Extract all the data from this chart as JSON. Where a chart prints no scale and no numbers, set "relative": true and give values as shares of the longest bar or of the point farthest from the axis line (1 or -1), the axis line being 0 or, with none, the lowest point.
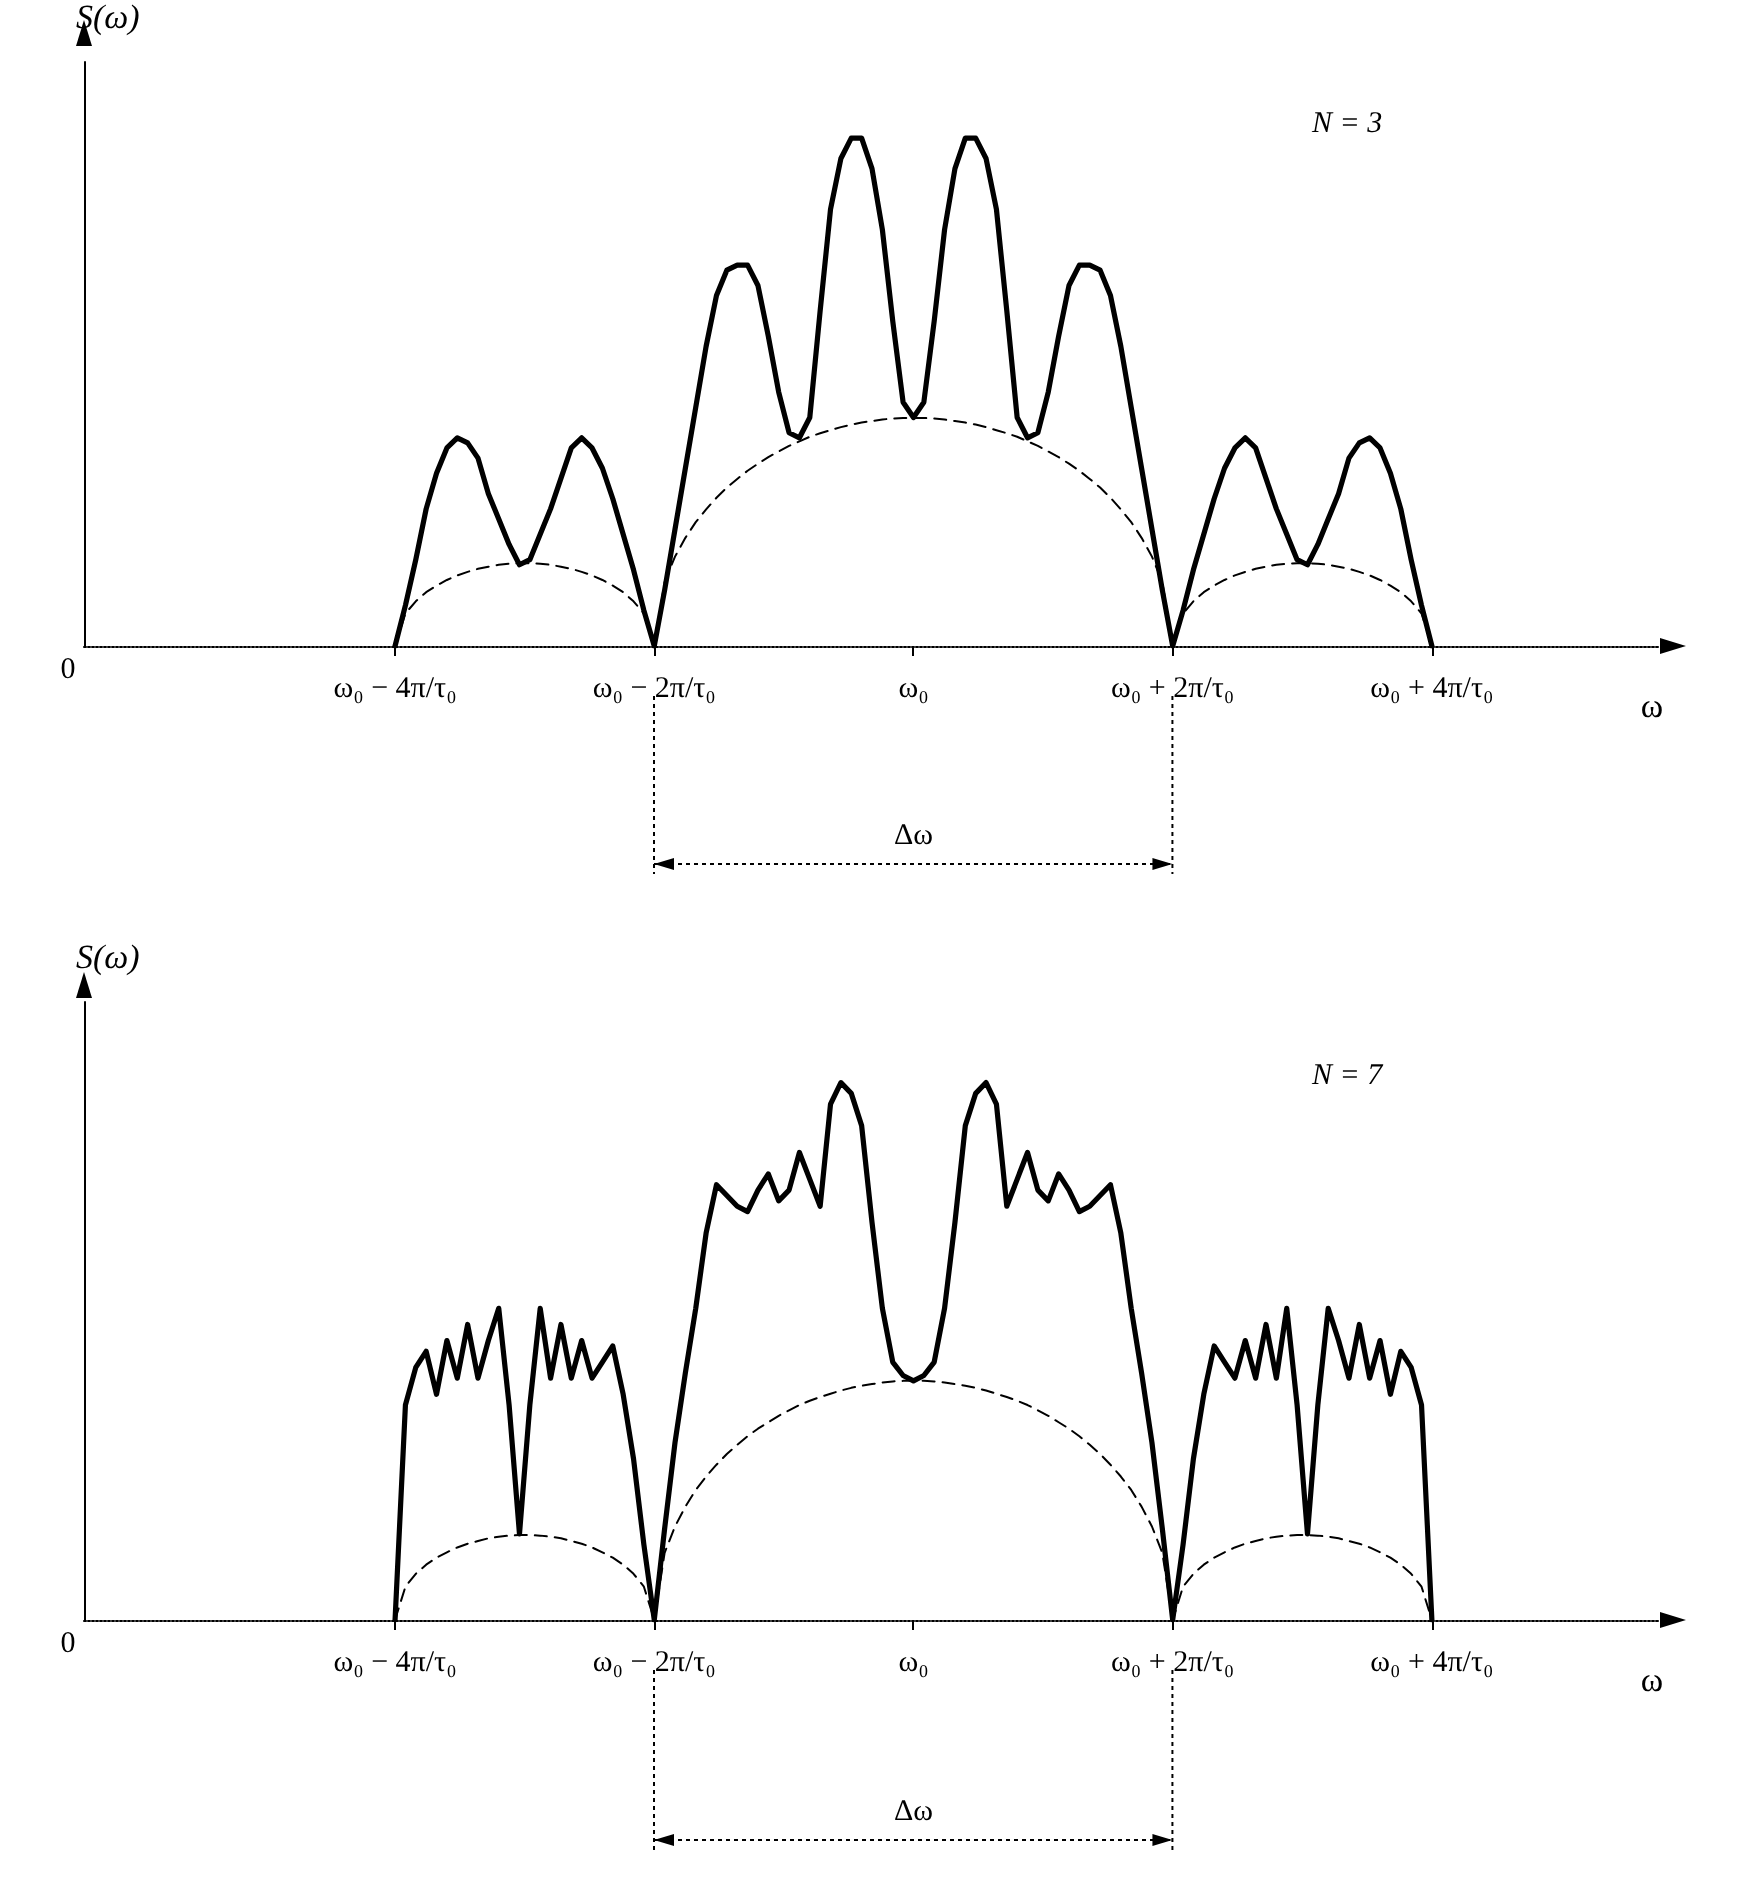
{
  "chart_data": [
    {
      "type": "line",
      "relative": true,
      "ylabel": "S(ω)",
      "xlabel": "ω",
      "grid": false,
      "marker": "none",
      "tick_labels": "x",
      "annotations": [
        "N = 3",
        "0",
        "Δω"
      ],
      "categories": [
        null,
        null,
        null,
        null,
        null,
        null,
        null,
        null,
        null,
        null,
        null,
        null,
        null,
        null,
        null,
        null,
        null,
        null,
        null,
        null,
        null,
        null,
        null,
        null,
        null,
        null,
        null,
        null,
        null,
        null,
        "ω₀ − 4π/τ₀",
        null,
        null,
        null,
        null,
        null,
        null,
        null,
        null,
        null,
        null,
        null,
        null,
        null,
        null,
        null,
        null,
        null,
        null,
        null,
        null,
        null,
        null,
        null,
        null,
        "ω₀ − 2π/τ₀",
        null,
        null,
        null,
        null,
        null,
        null,
        null,
        null,
        null,
        null,
        null,
        null,
        null,
        null,
        null,
        null,
        null,
        null,
        null,
        null,
        null,
        null,
        null,
        null,
        "ω₀",
        null,
        null,
        null,
        null,
        null,
        null,
        null,
        null,
        null,
        null,
        null,
        null,
        null,
        null,
        null,
        null,
        null,
        null,
        null,
        null,
        null,
        null,
        null,
        null,
        "ω₀ + 2π/τ₀",
        null,
        null,
        null,
        null,
        null,
        null,
        null,
        null,
        null,
        null,
        null,
        null,
        null,
        null,
        null,
        null,
        null,
        null,
        null,
        null,
        null,
        null,
        null,
        null,
        "ω₀ + 4π/τ₀",
        null,
        null,
        null,
        null,
        null,
        null,
        null,
        null,
        null,
        null,
        null,
        null,
        null,
        null,
        null,
        null,
        null,
        null,
        null,
        null,
        null,
        null
      ],
      "series": [
        {
          "color": "#000000",
          "line_style": "solid",
          "values": [
            null,
            null,
            null,
            null,
            null,
            null,
            null,
            null,
            null,
            null,
            null,
            null,
            null,
            null,
            null,
            null,
            null,
            null,
            null,
            null,
            null,
            null,
            null,
            null,
            null,
            null,
            null,
            null,
            null,
            null,
            0,
            0.08,
            0.17,
            0.27,
            0.34,
            0.39,
            0.41,
            0.4,
            0.37,
            0.3,
            0.25,
            0.2,
            0.16,
            0.17,
            0.22,
            0.27,
            0.33,
            0.39,
            0.41,
            0.39,
            0.35,
            0.29,
            0.22,
            0.15,
            0.07,
            0,
            0.11,
            0.23,
            0.35,
            0.47,
            0.59,
            0.69,
            0.74,
            0.75,
            0.75,
            0.71,
            0.61,
            0.5,
            0.42,
            0.41,
            0.45,
            0.66,
            0.86,
            0.96,
            1,
            1,
            0.94,
            0.82,
            0.64,
            0.48,
            0.45,
            0.48,
            0.64,
            0.82,
            0.94,
            1,
            1,
            0.96,
            0.86,
            0.66,
            0.45,
            0.41,
            0.42,
            0.5,
            0.61,
            0.71,
            0.75,
            0.75,
            0.74,
            0.69,
            0.59,
            0.47,
            0.35,
            0.23,
            0.11,
            0,
            0.07,
            0.15,
            0.22,
            0.29,
            0.35,
            0.39,
            0.41,
            0.39,
            0.33,
            0.27,
            0.22,
            0.17,
            0.16,
            0.2,
            0.25,
            0.3,
            0.37,
            0.4,
            0.41,
            0.39,
            0.34,
            0.27,
            0.17,
            0.08,
            0,
            null,
            null,
            null,
            null,
            null,
            null,
            null,
            null,
            null,
            null,
            null,
            null,
            null,
            null,
            null,
            null,
            null,
            null,
            null,
            null,
            null,
            null
          ]
        },
        {
          "color": "#000000",
          "line_style": "dashed",
          "values": [
            null,
            null,
            null,
            null,
            null,
            null,
            null,
            null,
            null,
            null,
            null,
            null,
            null,
            null,
            null,
            null,
            null,
            null,
            null,
            null,
            null,
            null,
            null,
            null,
            null,
            null,
            null,
            null,
            null,
            null,
            0,
            0.064,
            0.088,
            0.106,
            0.119,
            0.13,
            0.139,
            0.146,
            0.152,
            0.156,
            0.16,
            0.162,
            0.163,
            0.163,
            0.162,
            0.16,
            0.156,
            0.152,
            0.146,
            0.139,
            0.13,
            0.119,
            0.106,
            0.088,
            0.064,
            0,
            0.126,
            0.176,
            0.213,
            0.244,
            0.269,
            0.292,
            0.312,
            0.329,
            0.345,
            0.359,
            0.372,
            0.383,
            0.394,
            0.403,
            0.412,
            0.419,
            0.425,
            0.431,
            0.436,
            0.44,
            0.443,
            0.446,
            0.448,
            0.449,
            0.449,
            0.449,
            0.448,
            0.446,
            0.443,
            0.44,
            0.436,
            0.431,
            0.425,
            0.419,
            0.412,
            0.403,
            0.394,
            0.383,
            0.372,
            0.359,
            0.345,
            0.329,
            0.312,
            0.292,
            0.269,
            0.244,
            0.213,
            0.176,
            0.126,
            0,
            0.064,
            0.088,
            0.106,
            0.119,
            0.13,
            0.139,
            0.146,
            0.152,
            0.156,
            0.16,
            0.162,
            0.163,
            0.163,
            0.162,
            0.16,
            0.156,
            0.152,
            0.146,
            0.139,
            0.13,
            0.119,
            0.106,
            0.088,
            0.064,
            0,
            null,
            null,
            null,
            null,
            null,
            null,
            null,
            null,
            null,
            null,
            null,
            null,
            null,
            null,
            null,
            null,
            null,
            null,
            null,
            null,
            null,
            null
          ]
        }
      ]
    },
    {
      "type": "line",
      "relative": true,
      "ylabel": "S(ω)",
      "xlabel": "ω",
      "grid": false,
      "marker": "none",
      "tick_labels": "x",
      "annotations": [
        "N = 7",
        "0",
        "Δω"
      ],
      "categories": [
        null,
        null,
        null,
        null,
        null,
        null,
        null,
        null,
        null,
        null,
        null,
        null,
        null,
        null,
        null,
        null,
        null,
        null,
        null,
        null,
        null,
        null,
        null,
        null,
        null,
        null,
        null,
        null,
        null,
        null,
        "ω₀ − 4π/τ₀",
        null,
        null,
        null,
        null,
        null,
        null,
        null,
        null,
        null,
        null,
        null,
        null,
        null,
        null,
        null,
        null,
        null,
        null,
        null,
        null,
        null,
        null,
        null,
        null,
        "ω₀ − 2π/τ₀",
        null,
        null,
        null,
        null,
        null,
        null,
        null,
        null,
        null,
        null,
        null,
        null,
        null,
        null,
        null,
        null,
        null,
        null,
        null,
        null,
        null,
        null,
        null,
        null,
        "ω₀",
        null,
        null,
        null,
        null,
        null,
        null,
        null,
        null,
        null,
        null,
        null,
        null,
        null,
        null,
        null,
        null,
        null,
        null,
        null,
        null,
        null,
        null,
        null,
        null,
        "ω₀ + 2π/τ₀",
        null,
        null,
        null,
        null,
        null,
        null,
        null,
        null,
        null,
        null,
        null,
        null,
        null,
        null,
        null,
        null,
        null,
        null,
        null,
        null,
        null,
        null,
        null,
        null,
        "ω₀ + 4π/τ₀",
        null,
        null,
        null,
        null,
        null,
        null,
        null,
        null,
        null,
        null,
        null,
        null,
        null,
        null,
        null,
        null,
        null,
        null,
        null,
        null,
        null,
        null
      ],
      "series": [
        {
          "color": "#000000",
          "line_style": "solid",
          "values": [
            null,
            null,
            null,
            null,
            null,
            null,
            null,
            null,
            null,
            null,
            null,
            null,
            null,
            null,
            null,
            null,
            null,
            null,
            null,
            null,
            null,
            null,
            null,
            null,
            null,
            null,
            null,
            null,
            null,
            null,
            0,
            0.4,
            0.47,
            0.5,
            0.42,
            0.52,
            0.45,
            0.55,
            0.45,
            0.52,
            0.58,
            0.4,
            0.16,
            0.4,
            0.58,
            0.45,
            0.55,
            0.45,
            0.52,
            0.45,
            0.48,
            0.51,
            0.42,
            0.3,
            0.14,
            0,
            0.17,
            0.33,
            0.46,
            0.58,
            0.72,
            0.81,
            0.79,
            0.77,
            0.76,
            0.8,
            0.83,
            0.78,
            0.8,
            0.87,
            0.82,
            0.77,
            0.96,
            1,
            0.98,
            0.92,
            0.74,
            0.58,
            0.48,
            0.455,
            0.445,
            0.455,
            0.48,
            0.58,
            0.74,
            0.92,
            0.98,
            1,
            0.96,
            0.77,
            0.82,
            0.87,
            0.8,
            0.78,
            0.83,
            0.8,
            0.76,
            0.77,
            0.79,
            0.81,
            0.72,
            0.58,
            0.46,
            0.33,
            0.17,
            0,
            0.14,
            0.3,
            0.42,
            0.51,
            0.48,
            0.45,
            0.52,
            0.45,
            0.55,
            0.45,
            0.58,
            0.4,
            0.16,
            0.4,
            0.58,
            0.52,
            0.45,
            0.55,
            0.45,
            0.52,
            0.42,
            0.5,
            0.47,
            0.4,
            0,
            null,
            null,
            null,
            null,
            null,
            null,
            null,
            null,
            null,
            null,
            null,
            null,
            null,
            null,
            null,
            null,
            null,
            null,
            null,
            null,
            null,
            null
          ]
        },
        {
          "color": "#000000",
          "line_style": "dashed",
          "values": [
            null,
            null,
            null,
            null,
            null,
            null,
            null,
            null,
            null,
            null,
            null,
            null,
            null,
            null,
            null,
            null,
            null,
            null,
            null,
            null,
            null,
            null,
            null,
            null,
            null,
            null,
            null,
            null,
            null,
            null,
            0,
            0.062,
            0.086,
            0.103,
            0.116,
            0.126,
            0.135,
            0.142,
            0.147,
            0.152,
            0.155,
            0.157,
            0.158,
            0.158,
            0.157,
            0.155,
            0.152,
            0.147,
            0.142,
            0.135,
            0.126,
            0.116,
            0.103,
            0.086,
            0.062,
            0,
            0.125,
            0.174,
            0.211,
            0.242,
            0.267,
            0.289,
            0.309,
            0.326,
            0.342,
            0.356,
            0.368,
            0.38,
            0.39,
            0.4,
            0.408,
            0.415,
            0.421,
            0.427,
            0.432,
            0.436,
            0.439,
            0.442,
            0.444,
            0.445,
            0.445,
            0.445,
            0.444,
            0.442,
            0.439,
            0.436,
            0.432,
            0.427,
            0.421,
            0.415,
            0.408,
            0.4,
            0.39,
            0.38,
            0.368,
            0.356,
            0.342,
            0.326,
            0.309,
            0.289,
            0.267,
            0.242,
            0.211,
            0.174,
            0.125,
            0,
            0.062,
            0.086,
            0.103,
            0.116,
            0.126,
            0.135,
            0.142,
            0.147,
            0.152,
            0.155,
            0.157,
            0.158,
            0.158,
            0.157,
            0.155,
            0.152,
            0.147,
            0.142,
            0.135,
            0.126,
            0.116,
            0.103,
            0.086,
            0.062,
            0,
            null,
            null,
            null,
            null,
            null,
            null,
            null,
            null,
            null,
            null,
            null,
            null,
            null,
            null,
            null,
            null,
            null,
            null,
            null,
            null,
            null,
            null
          ]
        }
      ]
    }
  ]
}
